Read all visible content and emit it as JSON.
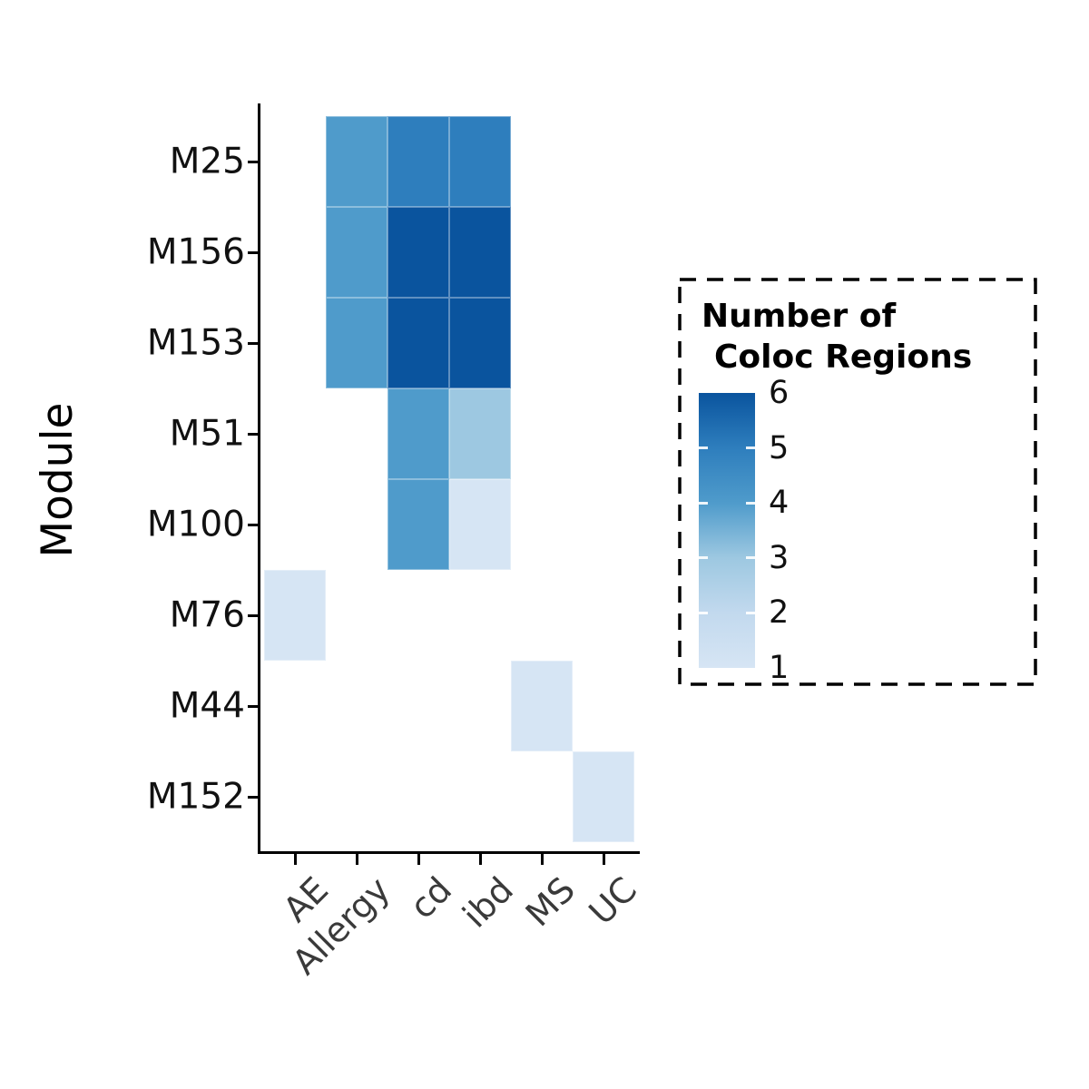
{
  "chart_data": {
    "type": "heatmap",
    "title": "",
    "xlabel": "",
    "ylabel": "Module",
    "rows": [
      "M25",
      "M156",
      "M153",
      "M51",
      "M100",
      "M76",
      "M44",
      "M152"
    ],
    "columns": [
      "AE",
      "Allergy",
      "cd",
      "ibd",
      "MS",
      "UC"
    ],
    "cells": [
      {
        "row": "M25",
        "col": "Allergy",
        "value": 4
      },
      {
        "row": "M25",
        "col": "cd",
        "value": 5
      },
      {
        "row": "M25",
        "col": "ibd",
        "value": 5
      },
      {
        "row": "M156",
        "col": "Allergy",
        "value": 4
      },
      {
        "row": "M156",
        "col": "cd",
        "value": 6
      },
      {
        "row": "M156",
        "col": "ibd",
        "value": 6
      },
      {
        "row": "M153",
        "col": "Allergy",
        "value": 4
      },
      {
        "row": "M153",
        "col": "cd",
        "value": 6
      },
      {
        "row": "M153",
        "col": "ibd",
        "value": 6
      },
      {
        "row": "M51",
        "col": "cd",
        "value": 4
      },
      {
        "row": "M51",
        "col": "ibd",
        "value": 3
      },
      {
        "row": "M100",
        "col": "cd",
        "value": 4
      },
      {
        "row": "M100",
        "col": "ibd",
        "value": 1
      },
      {
        "row": "M76",
        "col": "AE",
        "value": 1
      },
      {
        "row": "M44",
        "col": "MS",
        "value": 1
      },
      {
        "row": "M152",
        "col": "UC",
        "value": 1
      }
    ],
    "value_range": [
      1,
      6
    ],
    "color_scale": {
      "1": "#d6e5f4",
      "2": "#c2d9ee",
      "3": "#9dc8e1",
      "4": "#4f9bcb",
      "5": "#2e7ebd",
      "6": "#0a549e"
    },
    "legend": {
      "title_line1": "Number of",
      "title_line2": "Coloc Regions",
      "ticks": [
        "6",
        "5",
        "4",
        "3",
        "2",
        "1"
      ]
    }
  }
}
